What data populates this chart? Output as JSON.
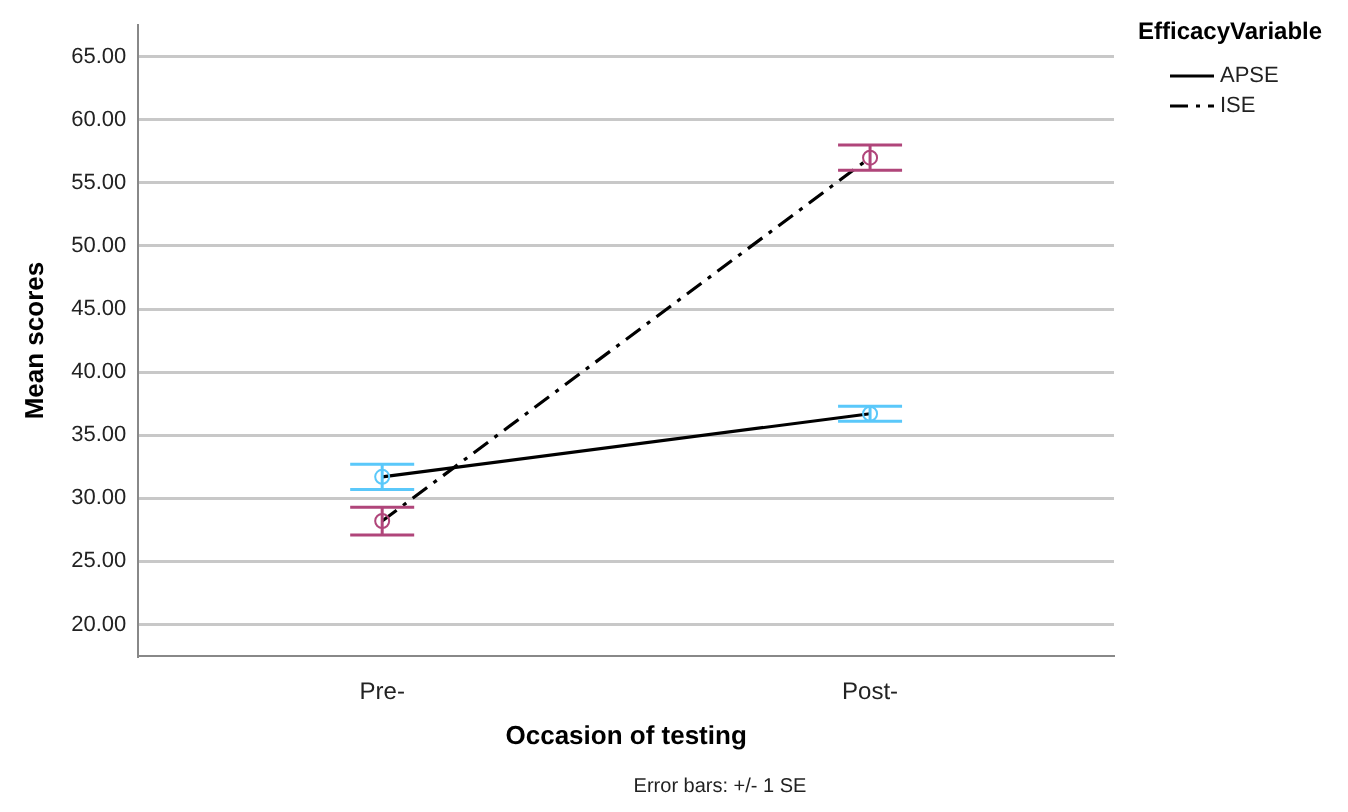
{
  "chart_data": {
    "type": "line",
    "xlabel": "Occasion of testing",
    "ylabel": "Mean scores",
    "legend_title": "EfficacyVariable",
    "legend": "top right",
    "grid": "y",
    "marker": "circle",
    "categories": [
      "Pre-",
      "Post-"
    ],
    "series": [
      {
        "name": "APSE",
        "color": "#000000",
        "colors": [
          "#5ac8fa",
          "#5ac8fa"
        ],
        "line_style": "solid",
        "values": [
          31.7,
          36.7
        ],
        "errors": [
          1.0,
          0.6
        ]
      },
      {
        "name": "ISE",
        "color": "#000000",
        "colors": [
          "#b0457a",
          "#b0457a"
        ],
        "line_style": "dashdot",
        "values": [
          28.2,
          57.0
        ],
        "errors": [
          1.1,
          1.0
        ]
      }
    ],
    "ylim": [
      17.5,
      67.5
    ],
    "yticks": [
      {
        "value": 20,
        "label": "20.00"
      },
      {
        "value": 25,
        "label": "25.00"
      },
      {
        "value": 30,
        "label": "30.00"
      },
      {
        "value": 35,
        "label": "35.00"
      },
      {
        "value": 40,
        "label": "40.00"
      },
      {
        "value": 45,
        "label": "45.00"
      },
      {
        "value": 50,
        "label": "50.00"
      },
      {
        "value": 55,
        "label": "55.00"
      },
      {
        "value": 60,
        "label": "60.00"
      },
      {
        "value": 65,
        "label": "65.00"
      }
    ],
    "annotations": [
      "Error bars: +/- 1 SE"
    ]
  }
}
